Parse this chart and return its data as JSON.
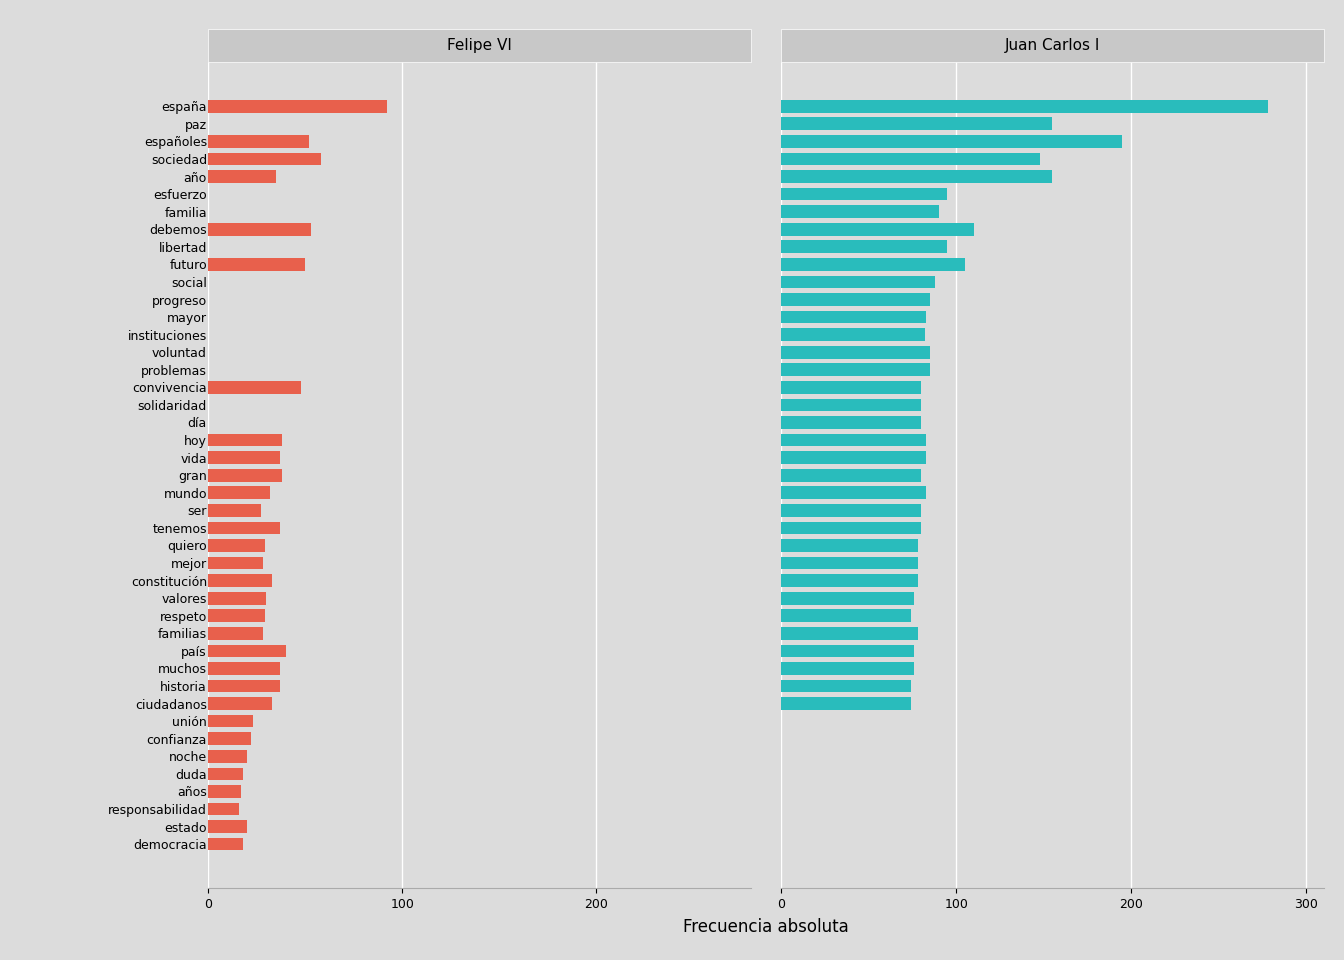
{
  "words": [
    "españa",
    "paz",
    "españoles",
    "sociedad",
    "año",
    "esfuerzo",
    "familia",
    "debemos",
    "libertad",
    "futuro",
    "social",
    "progreso",
    "mayor",
    "instituciones",
    "voluntad",
    "problemas",
    "convivencia",
    "solidaridad",
    "día",
    "hoy",
    "vida",
    "gran",
    "mundo",
    "ser",
    "tenemos",
    "quiero",
    "mejor",
    "constitución",
    "valores",
    "respeto",
    "familias",
    "país",
    "muchos",
    "historia",
    "ciudadanos",
    "unión",
    "confianza",
    "noche",
    "duda",
    "años",
    "responsabilidad",
    "estado",
    "democracia"
  ],
  "felipe_vi": [
    92,
    0,
    52,
    58,
    35,
    0,
    0,
    53,
    0,
    50,
    0,
    0,
    0,
    0,
    0,
    0,
    48,
    0,
    0,
    38,
    37,
    38,
    32,
    27,
    37,
    29,
    28,
    33,
    30,
    29,
    28,
    40,
    37,
    37,
    33,
    23,
    22,
    20,
    18,
    17,
    16,
    20,
    18
  ],
  "juan_carlos_i": [
    278,
    155,
    195,
    148,
    155,
    95,
    90,
    110,
    95,
    105,
    88,
    85,
    83,
    82,
    85,
    85,
    80,
    80,
    80,
    83,
    83,
    80,
    83,
    80,
    80,
    78,
    78,
    78,
    76,
    74,
    78,
    76,
    76,
    74,
    74,
    0,
    0,
    0,
    0,
    0,
    0,
    0,
    0
  ],
  "felipe_color": "#E8604C",
  "jc_color": "#29BCBC",
  "bg_color": "#DCDCDC",
  "strip_bg": "#D0D0D0",
  "grid_color": "#FFFFFF",
  "panel_bg": "#DCDCDC",
  "felipe_label": "Felipe VI",
  "jc_label": "Juan Carlos I",
  "xlabel": "Frecuencia absoluta",
  "felipe_xlim": [
    0,
    280
  ],
  "jc_xlim": [
    0,
    310
  ],
  "tick_fontsize": 9,
  "title_fontsize": 11,
  "label_fontsize": 12
}
